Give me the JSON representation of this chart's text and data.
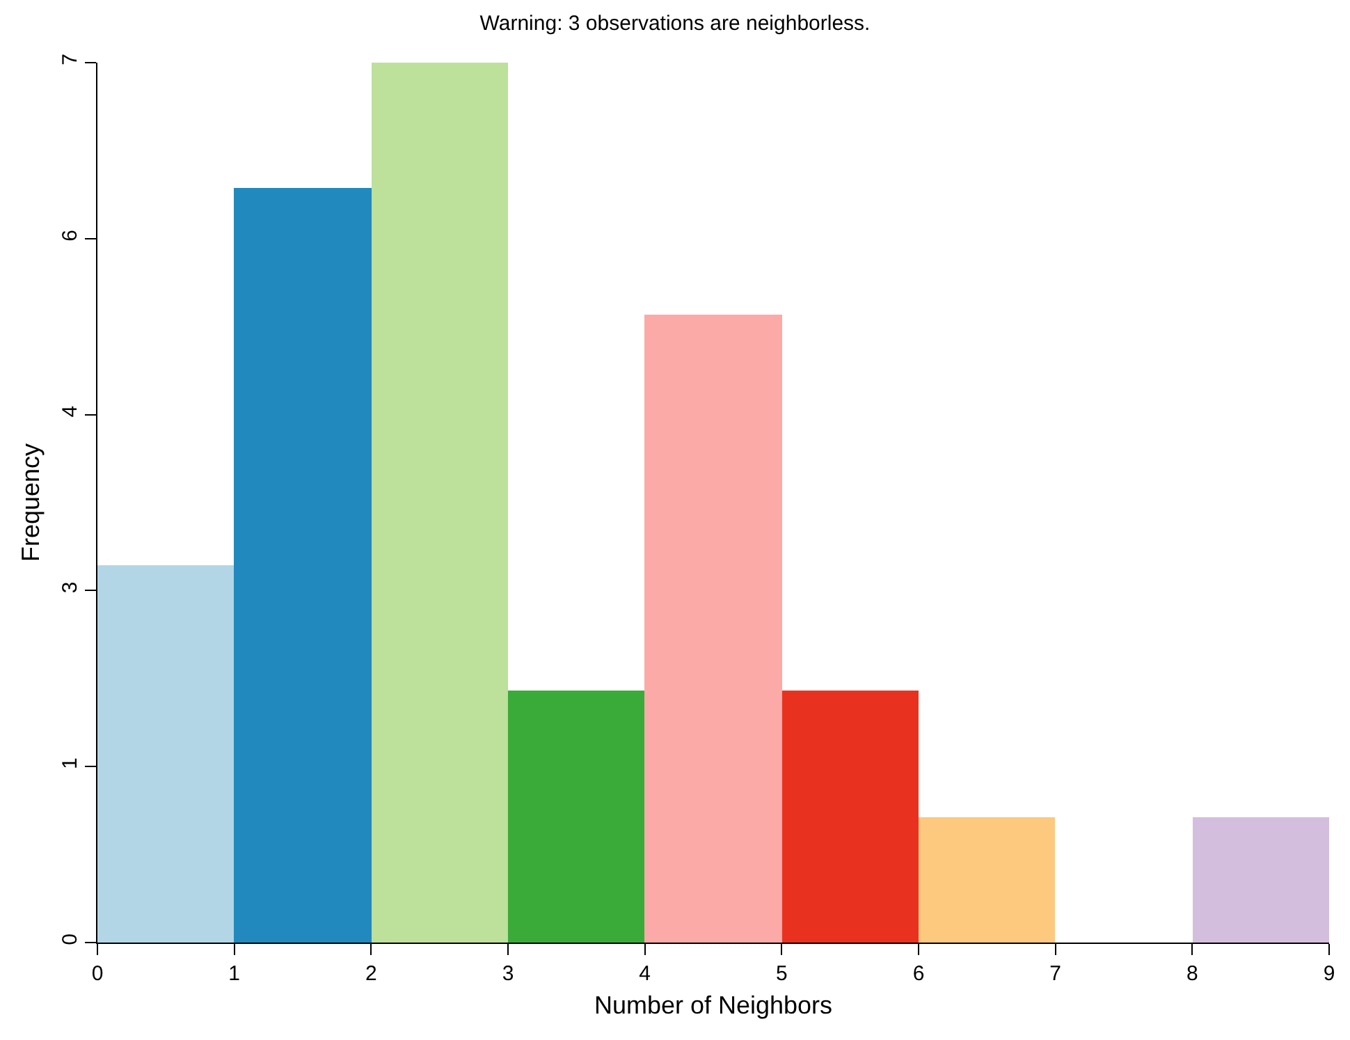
{
  "chart_data": {
    "type": "histogram",
    "title": "Warning: 3 observations are neighborless.",
    "xlabel": "Number of Neighbors",
    "ylabel": "Frequency",
    "bins": [
      0,
      1,
      2,
      3,
      4,
      5,
      6,
      7,
      8,
      9
    ],
    "values": [
      3,
      6,
      7,
      2,
      5,
      2,
      1,
      0,
      1
    ],
    "colors": [
      "#b3d6e6",
      "#2189be",
      "#bde09a",
      "#3aab38",
      "#fbaaa8",
      "#e8321f",
      "#fdc97f",
      null,
      "#d4bedd"
    ],
    "xlim": [
      0,
      9
    ],
    "xticks": [
      0,
      1,
      2,
      3,
      4,
      5,
      6,
      7,
      8,
      9
    ],
    "ylim": [
      0,
      7
    ],
    "yticks": [
      0,
      {
        "value": 1.4,
        "label": "1"
      },
      {
        "value": 2.8,
        "label": "3"
      },
      {
        "value": 4.2,
        "label": "4"
      },
      {
        "value": 5.6,
        "label": "6"
      },
      7
    ]
  }
}
